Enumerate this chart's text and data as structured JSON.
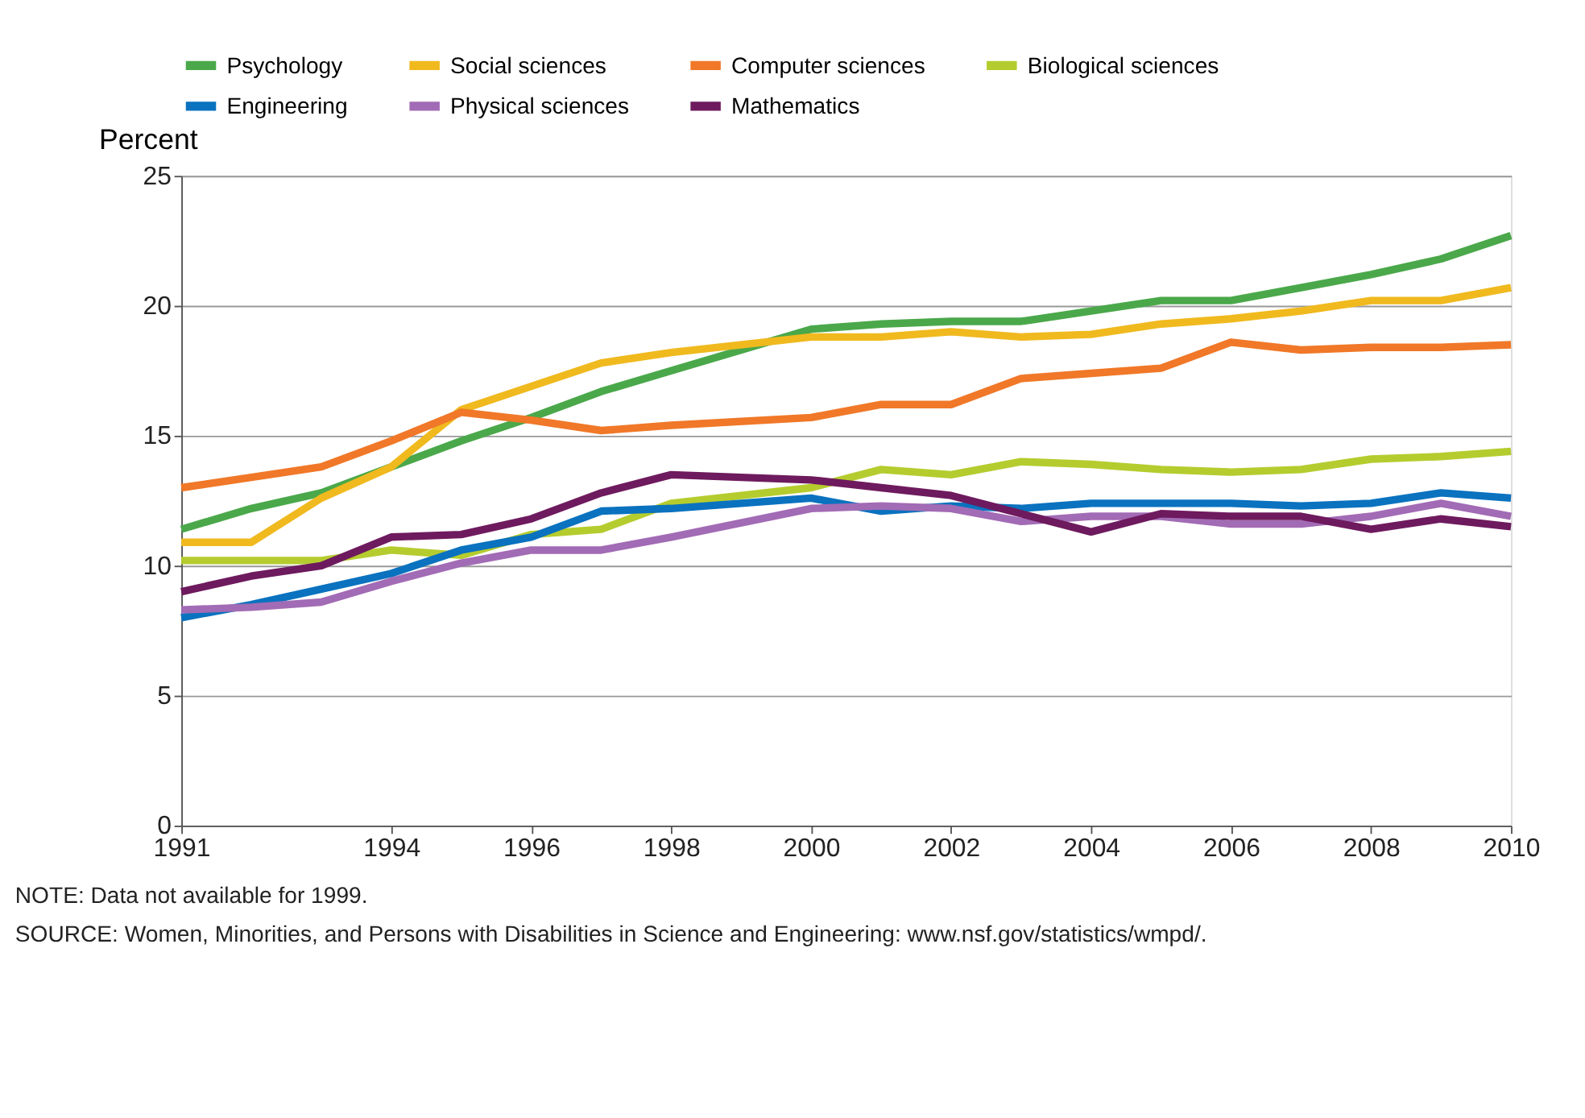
{
  "chart_data": {
    "type": "line",
    "ylabel": "Percent",
    "x": [
      1991,
      1992,
      1993,
      1994,
      1995,
      1996,
      1997,
      1998,
      2000,
      2001,
      2002,
      2003,
      2004,
      2005,
      2006,
      2007,
      2008,
      2009,
      2010
    ],
    "series": [
      {
        "name": "Psychology",
        "color": "#4aa84a",
        "values": [
          11.4,
          12.2,
          12.8,
          13.8,
          14.8,
          15.7,
          16.7,
          17.5,
          19.1,
          19.3,
          19.4,
          19.4,
          19.8,
          20.2,
          20.2,
          20.7,
          21.2,
          21.8,
          22.7
        ]
      },
      {
        "name": "Social sciences",
        "color": "#f0b91e",
        "values": [
          10.9,
          10.9,
          12.6,
          13.8,
          16.0,
          16.9,
          17.8,
          18.2,
          18.8,
          18.8,
          19.0,
          18.8,
          18.9,
          19.3,
          19.5,
          19.8,
          20.2,
          20.2,
          20.7
        ]
      },
      {
        "name": "Computer sciences",
        "color": "#f07828",
        "values": [
          13.0,
          13.4,
          13.8,
          14.8,
          15.9,
          15.6,
          15.2,
          15.4,
          15.7,
          16.2,
          16.2,
          17.2,
          17.4,
          17.6,
          18.6,
          18.3,
          18.4,
          18.4,
          18.5
        ]
      },
      {
        "name": "Biological sciences",
        "color": "#b5cc2e",
        "values": [
          10.2,
          10.2,
          10.2,
          10.6,
          10.4,
          11.2,
          11.4,
          12.4,
          13.0,
          13.7,
          13.5,
          14.0,
          13.9,
          13.7,
          13.6,
          13.7,
          14.1,
          14.2,
          14.4
        ]
      },
      {
        "name": "Engineering",
        "color": "#0a72bf",
        "values": [
          8.0,
          8.5,
          9.1,
          9.7,
          10.6,
          11.1,
          12.1,
          12.2,
          12.6,
          12.1,
          12.3,
          12.2,
          12.4,
          12.4,
          12.4,
          12.3,
          12.4,
          12.8,
          12.6
        ]
      },
      {
        "name": "Physical sciences",
        "color": "#a26bb5",
        "values": [
          8.3,
          8.4,
          8.6,
          9.4,
          10.1,
          10.6,
          10.6,
          11.1,
          12.2,
          12.3,
          12.2,
          11.7,
          11.9,
          11.9,
          11.6,
          11.6,
          11.9,
          12.4,
          11.9
        ]
      },
      {
        "name": "Mathematics",
        "color": "#6e1a5e",
        "values": [
          9.0,
          9.6,
          10.0,
          11.1,
          11.2,
          11.8,
          12.8,
          13.5,
          13.3,
          13.0,
          12.7,
          12.0,
          11.3,
          12.0,
          11.9,
          11.9,
          11.4,
          11.8,
          11.5
        ]
      }
    ],
    "xlim": [
      1991,
      2010
    ],
    "xticks": [
      1991,
      1994,
      1996,
      1998,
      2000,
      2002,
      2004,
      2006,
      2008,
      2010
    ],
    "ylim": [
      0,
      25
    ],
    "yticks": [
      0,
      5,
      10,
      15,
      20,
      25
    ],
    "grid": "y",
    "legend": "top",
    "marker": "none",
    "line_style": "solid",
    "annotations": [
      "NOTE: Data not available for 1999.",
      "SOURCE: Women, Minorities, and Persons with Disabilities in Science and Engineering: www.nsf.gov/statistics/wmpd/."
    ]
  }
}
